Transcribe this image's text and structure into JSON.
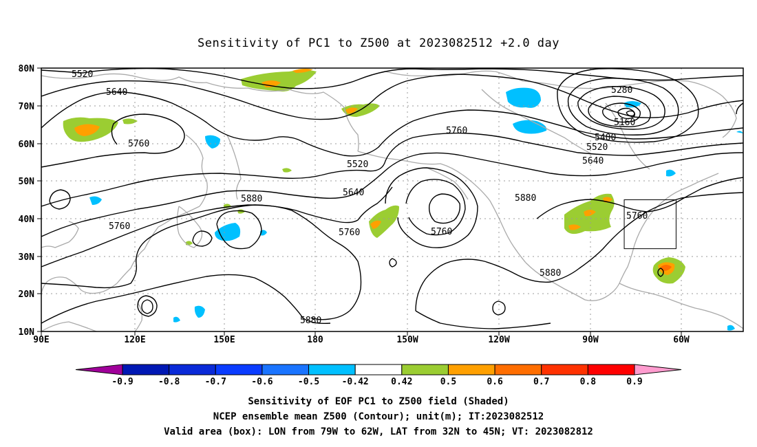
{
  "title": "Sensitivity of PC1 to Z500 at 2023082512 +2.0 day",
  "lat_ticks": [
    "80N",
    "70N",
    "60N",
    "50N",
    "40N",
    "30N",
    "20N",
    "10N"
  ],
  "lon_ticks": [
    "90E",
    "120E",
    "150E",
    "180",
    "150W",
    "120W",
    "90W",
    "60W"
  ],
  "colorbar": {
    "labels": [
      "-0.9",
      "-0.8",
      "-0.7",
      "-0.6",
      "-0.5",
      "-0.42",
      "0.42",
      "0.5",
      "0.6",
      "0.7",
      "0.8",
      "0.9"
    ],
    "colors": [
      "#a0009a",
      "#0018b4",
      "#0a2ad8",
      "#0a3cff",
      "#1a74ff",
      "#00c0ff",
      "#ffffff",
      "#9bcd32",
      "#ffa000",
      "#ff6e00",
      "#ff3200",
      "#ff0000",
      "#ff9ccf"
    ]
  },
  "contour_labels": {
    "c5520a": "5520",
    "c5640a": "5640",
    "c5760a": "5760",
    "c5280": "5280",
    "c5160": "5160",
    "c5400": "5400",
    "c5520b": "5520",
    "c5640b": "5640",
    "c5760mid": "5760",
    "c5520mid": "5520",
    "c5640mid": "5640",
    "c5880a": "5880",
    "c5760w": "5760",
    "c5760c1": "5760",
    "c5760c2": "5760",
    "c5880b": "5880",
    "c5760e": "5760",
    "c5880c": "5880",
    "c5880d": "5880"
  },
  "valid_box": {
    "lon_w": -79,
    "lon_e": -62,
    "lat_s": 32,
    "lat_n": 45
  },
  "captions": {
    "line1": "Sensitivity of EOF PC1 to Z500 field (Shaded)",
    "line2": "NCEP ensemble mean Z500 (Contour); unit(m); IT:2023082512",
    "line3": "Valid area (box): LON from 79W to 62W, LAT from 32N to 45N; VT: 2023082812"
  }
}
